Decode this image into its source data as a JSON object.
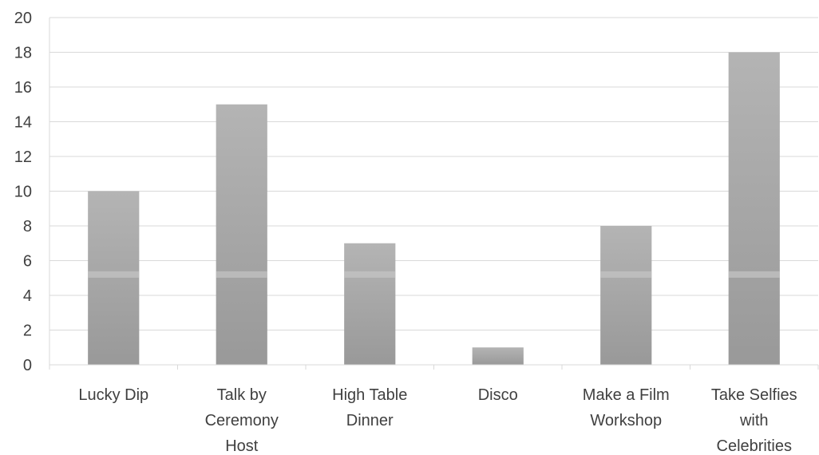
{
  "chart_data": {
    "type": "bar",
    "title": "",
    "xlabel": "",
    "ylabel": "",
    "categories": [
      [
        "Lucky Dip"
      ],
      [
        "Talk by",
        "Ceremony",
        "Host"
      ],
      [
        "High Table",
        "Dinner"
      ],
      [
        "Disco"
      ],
      [
        "Make a Film",
        "Workshop"
      ],
      [
        "Take Selfies",
        "with",
        "Celebrities"
      ]
    ],
    "values": [
      10,
      15,
      7,
      1,
      8,
      18
    ],
    "ylim": [
      0,
      20
    ],
    "yticks": [
      "0",
      "2",
      "4",
      "6",
      "8",
      "10",
      "12",
      "14",
      "16",
      "18",
      "20"
    ],
    "grid": true,
    "legend": "none",
    "bar_color": "#a6a6a6"
  }
}
